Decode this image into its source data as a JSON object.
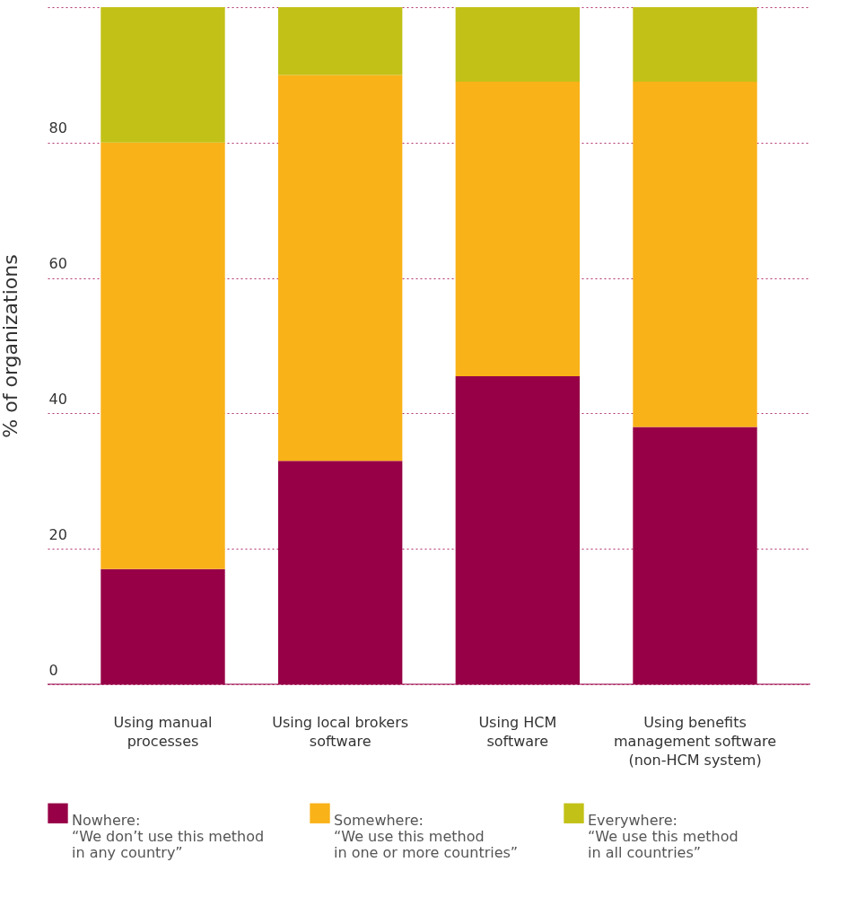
{
  "chart_data": {
    "type": "bar",
    "stacked": true,
    "ylabel": "% of organizations",
    "categories": [
      "Using manual\nprocesses",
      "Using local brokers\nsoftware",
      "Using HCM\nsoftware",
      "Using benefits\nmanagement software\n(non-HCM system)"
    ],
    "series": [
      {
        "name": "Nowhere:\n“We don’t use this method\nin any country”",
        "color": "#970047",
        "values": [
          17,
          33,
          45.5,
          38
        ]
      },
      {
        "name": "Somewhere:\n“We use this method\nin one or more countries”",
        "color": "#f9b218",
        "values": [
          63,
          57,
          43.5,
          51
        ]
      },
      {
        "name": "Everywhere:\n“We use this method\nin all countries”",
        "color": "#c2c117",
        "values": [
          20,
          10,
          11,
          11
        ]
      }
    ],
    "ylim": [
      0,
      100
    ],
    "yticks": [
      0,
      20,
      40,
      60,
      80,
      {
        "value": 100,
        "label": null
      }
    ],
    "grid": "y",
    "legend": "bottom"
  }
}
